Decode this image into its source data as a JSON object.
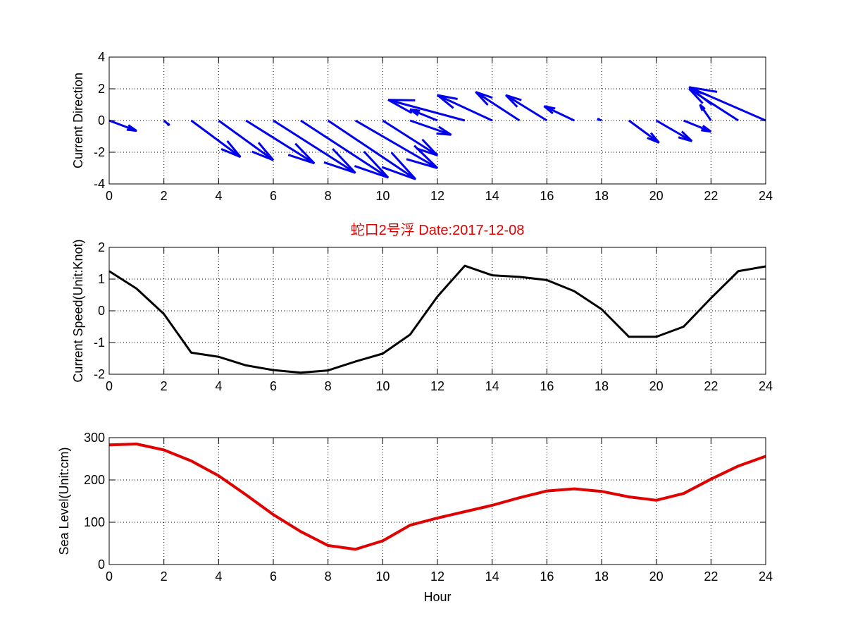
{
  "title": "蛇口2号浮   Date:2017-12-08",
  "colors": {
    "title": "#e00000",
    "arrows": "#0000ee",
    "speed_line": "#000000",
    "level_line": "#e00000",
    "axis": "#000000",
    "grid": "#000000"
  },
  "chart_data": [
    {
      "type": "quiver",
      "ylabel": "Current Direction",
      "xlabel": "",
      "xlim": [
        0,
        24
      ],
      "ylim": [
        -4,
        4
      ],
      "xticks": [
        0,
        2,
        4,
        6,
        8,
        10,
        12,
        14,
        16,
        18,
        20,
        22,
        24
      ],
      "yticks": [
        -4,
        -2,
        0,
        2,
        4
      ],
      "grid": true,
      "vectors": [
        {
          "x": 0,
          "y": 0,
          "u": 1.0,
          "v": -0.65
        },
        {
          "x": 2,
          "y": 0,
          "u": 0.2,
          "v": -0.3
        },
        {
          "x": 3,
          "y": 0,
          "u": 1.8,
          "v": -2.3
        },
        {
          "x": 4,
          "y": 0,
          "u": 2.0,
          "v": -2.5
        },
        {
          "x": 5,
          "y": 0,
          "u": 2.5,
          "v": -2.7
        },
        {
          "x": 6,
          "y": 0,
          "u": 3.0,
          "v": -3.3
        },
        {
          "x": 7,
          "y": 0,
          "u": 3.2,
          "v": -3.6
        },
        {
          "x": 8,
          "y": 0,
          "u": 3.2,
          "v": -3.7
        },
        {
          "x": 9,
          "y": 0,
          "u": 3.0,
          "v": -3.0
        },
        {
          "x": 10,
          "y": 0,
          "u": 2.0,
          "v": -2.2
        },
        {
          "x": 11,
          "y": 0,
          "u": 1.5,
          "v": -0.9
        },
        {
          "x": 12,
          "y": 0,
          "u": -1.0,
          "v": 0.7
        },
        {
          "x": 13,
          "y": 0,
          "u": -2.8,
          "v": 1.3
        },
        {
          "x": 14,
          "y": 0,
          "u": -2.0,
          "v": 1.6
        },
        {
          "x": 15,
          "y": 0,
          "u": -1.6,
          "v": 1.8
        },
        {
          "x": 16,
          "y": 0,
          "u": -1.5,
          "v": 1.6
        },
        {
          "x": 17,
          "y": 0,
          "u": -1.1,
          "v": 0.9
        },
        {
          "x": 18,
          "y": 0,
          "u": -0.15,
          "v": 0.1
        },
        {
          "x": 19,
          "y": 0,
          "u": 1.1,
          "v": -1.4
        },
        {
          "x": 20,
          "y": 0,
          "u": 1.3,
          "v": -1.3
        },
        {
          "x": 21,
          "y": 0,
          "u": 1.0,
          "v": -0.7
        },
        {
          "x": 22,
          "y": 0,
          "u": -0.4,
          "v": 1.0
        },
        {
          "x": 23,
          "y": 0,
          "u": -1.8,
          "v": 2.0
        },
        {
          "x": 24,
          "y": 0,
          "u": -2.8,
          "v": 2.1
        }
      ]
    },
    {
      "type": "line",
      "ylabel": "Current Speed(Unit:Knot)",
      "xlabel": "",
      "xlim": [
        0,
        24
      ],
      "ylim": [
        -2,
        2
      ],
      "xticks": [
        0,
        2,
        4,
        6,
        8,
        10,
        12,
        14,
        16,
        18,
        20,
        22,
        24
      ],
      "yticks": [
        -2,
        -1,
        0,
        1,
        2
      ],
      "grid": true,
      "x": [
        0,
        1,
        2,
        3,
        4,
        5,
        6,
        7,
        8,
        9,
        10,
        11,
        12,
        13,
        14,
        15,
        16,
        17,
        18,
        19,
        20,
        21,
        22,
        23,
        24
      ],
      "y": [
        1.25,
        0.7,
        -0.1,
        -1.32,
        -1.45,
        -1.72,
        -1.87,
        -1.95,
        -1.88,
        -1.6,
        -1.35,
        -0.75,
        0.45,
        1.42,
        1.12,
        1.07,
        0.97,
        0.62,
        0.05,
        -0.82,
        -0.82,
        -0.5,
        0.4,
        1.25,
        1.4
      ]
    },
    {
      "type": "line",
      "ylabel": "Sea Level(Unit:cm)",
      "xlabel": "Hour",
      "xlim": [
        0,
        24
      ],
      "ylim": [
        0,
        300
      ],
      "xticks": [
        0,
        2,
        4,
        6,
        8,
        10,
        12,
        14,
        16,
        18,
        20,
        22,
        24
      ],
      "yticks": [
        0,
        100,
        200,
        300
      ],
      "grid": true,
      "x": [
        0,
        1,
        2,
        3,
        4,
        5,
        6,
        7,
        8,
        9,
        10,
        11,
        12,
        13,
        14,
        15,
        16,
        17,
        18,
        19,
        20,
        21,
        22,
        23,
        24
      ],
      "y": [
        283,
        285,
        271,
        245,
        210,
        165,
        118,
        78,
        45,
        36,
        56,
        93,
        110,
        125,
        140,
        158,
        174,
        179,
        173,
        160,
        152,
        168,
        202,
        233,
        256
      ]
    }
  ]
}
